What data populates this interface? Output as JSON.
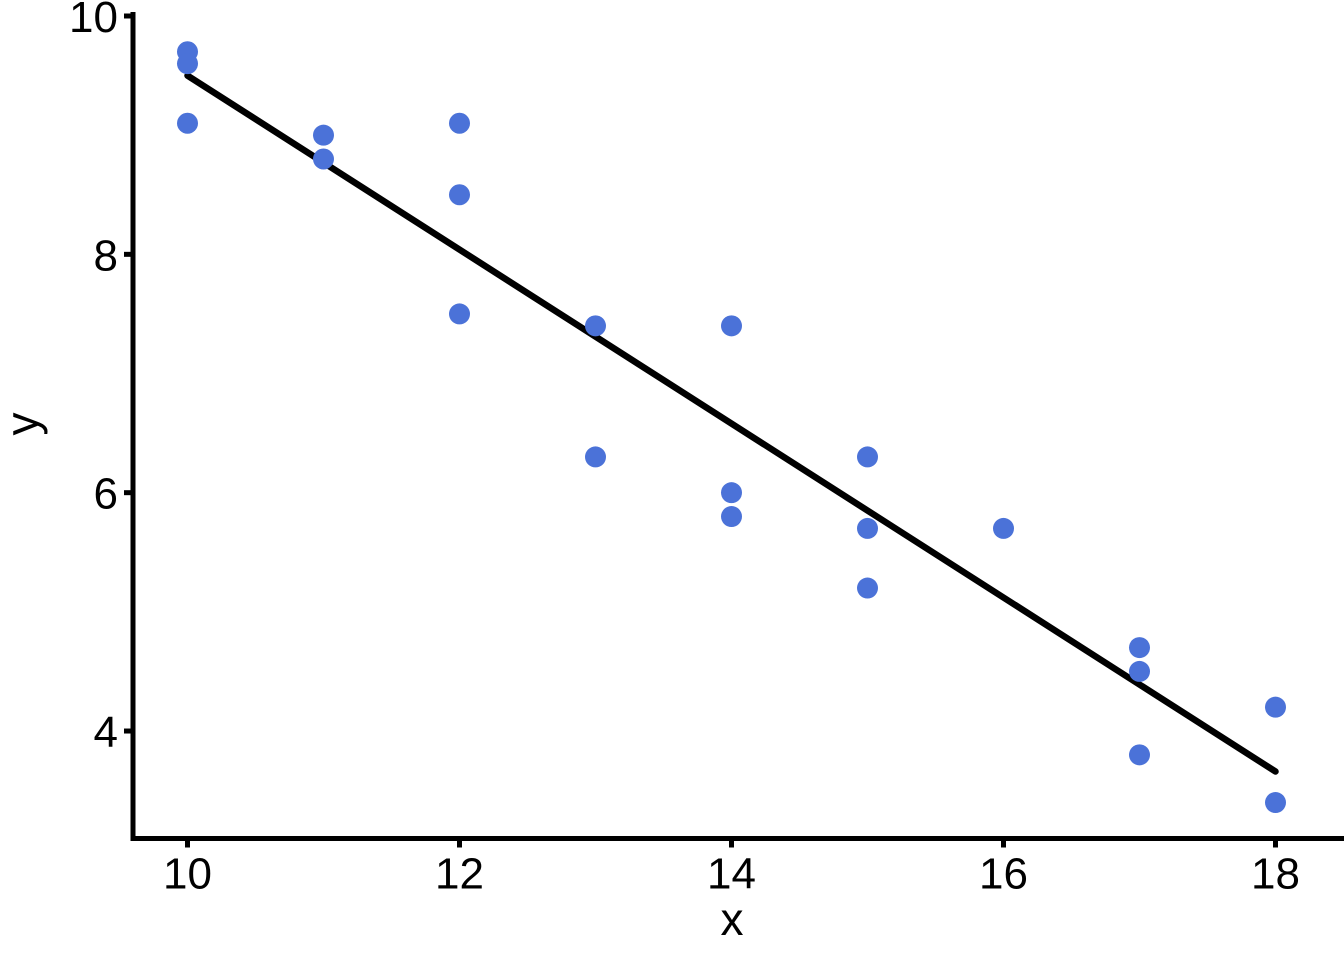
{
  "chart_data": {
    "type": "scatter",
    "title": "",
    "xlabel": "x",
    "ylabel": "y",
    "x_ticks": [
      10,
      12,
      14,
      16,
      18
    ],
    "y_ticks": [
      4,
      6,
      8,
      10
    ],
    "xlim": [
      9.6,
      18.5
    ],
    "ylim": [
      3.1,
      10.05
    ],
    "grid": false,
    "legend": "none",
    "point_color": "#4b72d8",
    "trend_color": "#000000",
    "axis_color": "#000000",
    "points": [
      {
        "x": 10,
        "y": 9.7
      },
      {
        "x": 10,
        "y": 9.6
      },
      {
        "x": 10,
        "y": 9.1
      },
      {
        "x": 11,
        "y": 9.0
      },
      {
        "x": 11,
        "y": 8.8
      },
      {
        "x": 12,
        "y": 9.1
      },
      {
        "x": 12,
        "y": 8.5
      },
      {
        "x": 12,
        "y": 7.5
      },
      {
        "x": 13,
        "y": 7.4
      },
      {
        "x": 13,
        "y": 6.3
      },
      {
        "x": 14,
        "y": 7.4
      },
      {
        "x": 14,
        "y": 6.0
      },
      {
        "x": 14,
        "y": 5.8
      },
      {
        "x": 15,
        "y": 6.3
      },
      {
        "x": 15,
        "y": 5.7
      },
      {
        "x": 15,
        "y": 5.2
      },
      {
        "x": 16,
        "y": 5.7
      },
      {
        "x": 17,
        "y": 4.7
      },
      {
        "x": 17,
        "y": 4.5
      },
      {
        "x": 17,
        "y": 3.8
      },
      {
        "x": 18,
        "y": 4.2
      },
      {
        "x": 18,
        "y": 3.4
      }
    ],
    "trend_line": {
      "x1": 10.0,
      "y1": 9.5,
      "x2": 18.0,
      "y2": 3.66
    }
  }
}
